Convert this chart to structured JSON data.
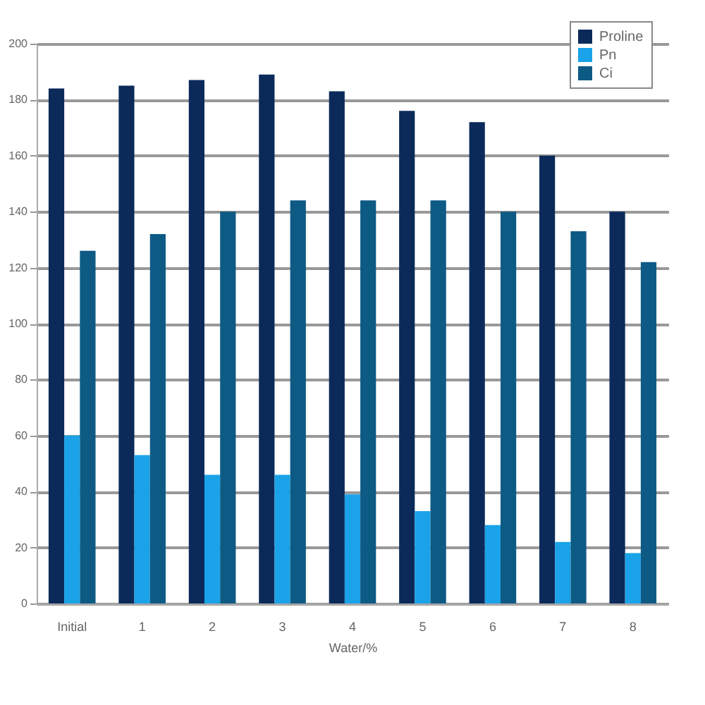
{
  "chart_data": {
    "type": "bar",
    "xlabel": "Water/%",
    "categories": [
      "Initial",
      "1",
      "2",
      "3",
      "4",
      "5",
      "6",
      "7",
      "8"
    ],
    "series": [
      {
        "name": "Proline",
        "color": "#0b2a5a",
        "values": [
          184,
          185,
          187,
          189,
          183,
          176,
          172,
          160,
          140
        ]
      },
      {
        "name": "Pn",
        "color": "#1aa3e8",
        "values": [
          60,
          53,
          46,
          46,
          39,
          33,
          28,
          22,
          18
        ]
      },
      {
        "name": "Ci",
        "color": "#0d5a85",
        "values": [
          126,
          132,
          140,
          144,
          144,
          144,
          140,
          133,
          122
        ]
      }
    ],
    "ylim": [
      0,
      200
    ],
    "yticks": [
      0,
      20,
      40,
      60,
      80,
      100,
      120,
      140,
      160,
      180,
      200
    ],
    "grid": "y",
    "legend": "top right"
  }
}
